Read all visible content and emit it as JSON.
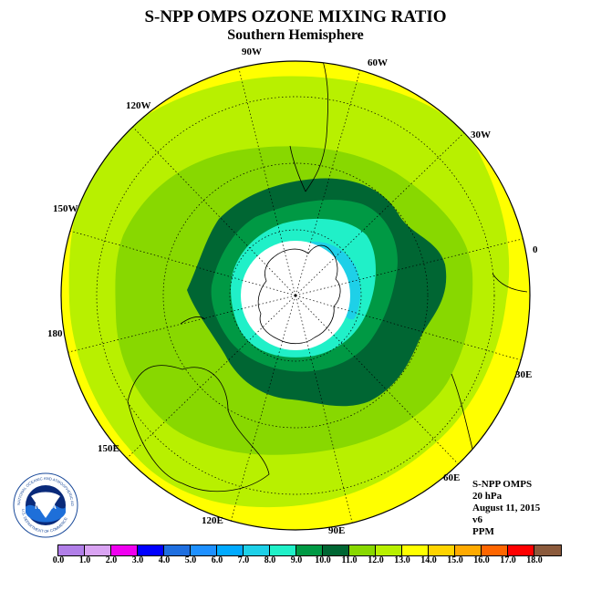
{
  "header": {
    "title": "S-NPP OMPS OZONE MIXING RATIO",
    "subtitle": "Southern Hemisphere"
  },
  "map": {
    "projection": "polar stereographic, south pole",
    "longitude_labels": [
      "90W",
      "60W",
      "30W",
      "0",
      "30E",
      "60E",
      "90E",
      "120E",
      "150E",
      "180",
      "150W",
      "120W"
    ]
  },
  "info": {
    "instrument": "S-NPP OMPS",
    "level": "20 hPa",
    "date": "August 11, 2015",
    "version": "v6",
    "units": "PPM"
  },
  "logo": {
    "text": "NOAA",
    "ring_text": "NATIONAL OCEANIC AND ATMOSPHERIC ADMINISTRATION",
    "ring_text_bottom": "U.S. DEPARTMENT OF COMMERCE"
  },
  "colorbar": {
    "ticks": [
      "0.0",
      "1.0",
      "2.0",
      "3.0",
      "4.0",
      "5.0",
      "6.0",
      "7.0",
      "8.0",
      "9.0",
      "10.0",
      "11.0",
      "12.0",
      "13.0",
      "14.0",
      "15.0",
      "16.0",
      "17.0",
      "18.0"
    ],
    "colors": [
      "#b17fe8",
      "#d9a3f2",
      "#f000f0",
      "#0000ff",
      "#1f6fe0",
      "#1e90ff",
      "#00aaff",
      "#1ed0e8",
      "#20f0c8",
      "#009944",
      "#006633",
      "#88d800",
      "#b8f000",
      "#ffff00",
      "#ffd400",
      "#ffaa00",
      "#ff6600",
      "#ff0000",
      "#8b5a3c"
    ]
  }
}
